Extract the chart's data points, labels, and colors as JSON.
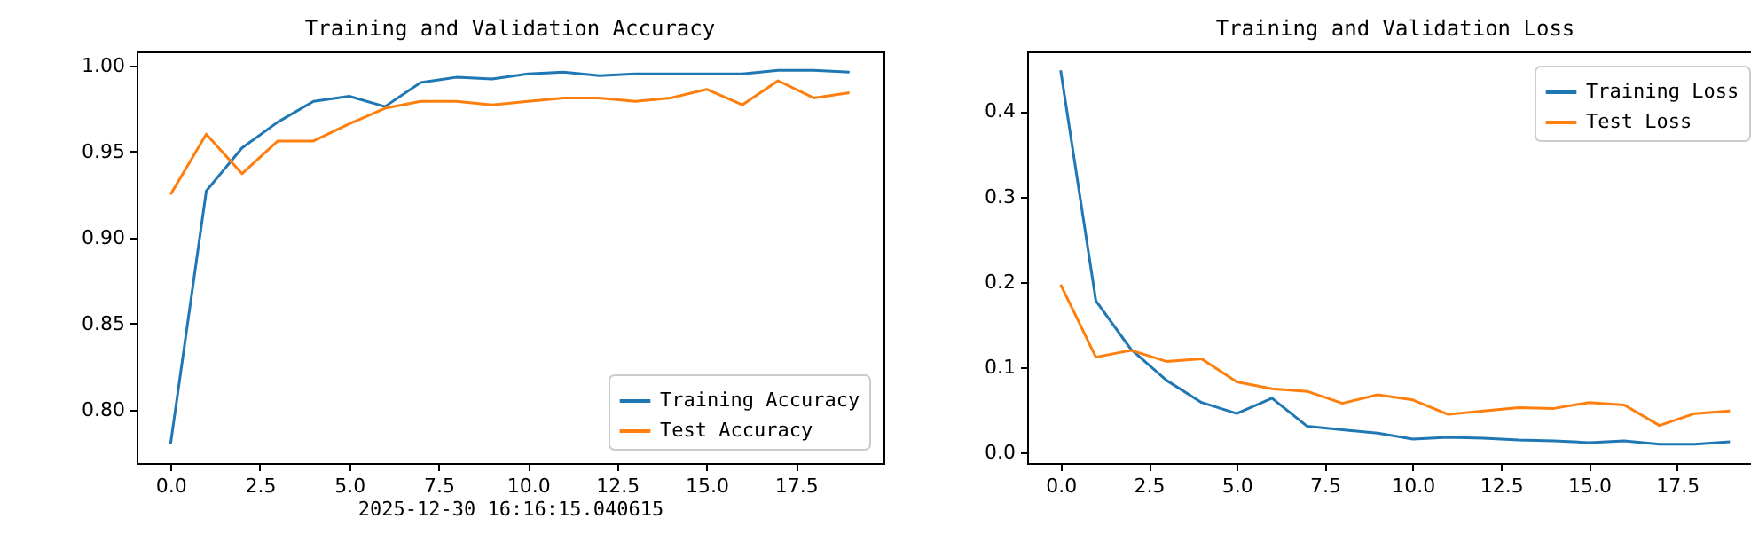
{
  "chart_data": [
    {
      "type": "line",
      "title": "Training and Validation Accuracy",
      "xlabel": "2025-12-30 16:16:15.040615",
      "x": [
        0,
        1,
        2,
        3,
        4,
        5,
        6,
        7,
        8,
        9,
        10,
        11,
        12,
        13,
        14,
        15,
        16,
        17,
        18,
        19
      ],
      "series": [
        {
          "name": "Training Accuracy",
          "color": "#1f77b4",
          "values": [
            0.78,
            0.927,
            0.952,
            0.967,
            0.979,
            0.982,
            0.976,
            0.99,
            0.993,
            0.992,
            0.995,
            0.996,
            0.994,
            0.995,
            0.995,
            0.995,
            0.995,
            0.997,
            0.997,
            0.996
          ]
        },
        {
          "name": "Test Accuracy",
          "color": "#ff7f0e",
          "values": [
            0.925,
            0.96,
            0.937,
            0.956,
            0.956,
            0.966,
            0.975,
            0.979,
            0.979,
            0.977,
            0.979,
            0.981,
            0.981,
            0.979,
            0.981,
            0.986,
            0.977,
            0.991,
            0.981,
            0.984
          ]
        }
      ],
      "xlim": [
        -0.95,
        19.95
      ],
      "ylim": [
        0.769,
        1.008
      ],
      "xticks": [
        {
          "value": 0,
          "label": "0.0"
        },
        2.5,
        {
          "value": 5,
          "label": "5.0"
        },
        7.5,
        {
          "value": 10,
          "label": "10.0"
        },
        12.5,
        {
          "value": 15,
          "label": "15.0"
        },
        17.5
      ],
      "yticks": [
        {
          "value": 0.8,
          "label": "0.80"
        },
        {
          "value": 0.85,
          "label": "0.85"
        },
        {
          "value": 0.9,
          "label": "0.90"
        },
        {
          "value": 0.95,
          "label": "0.95"
        },
        {
          "value": 1,
          "label": "1.00"
        }
      ],
      "legend": "bottom right",
      "grid": false,
      "line_style": "solid",
      "marker": "none"
    },
    {
      "type": "line",
      "title": "Training and Validation Loss",
      "x": [
        0,
        1,
        2,
        3,
        4,
        5,
        6,
        7,
        8,
        9,
        10,
        11,
        12,
        13,
        14,
        15,
        16,
        17,
        18,
        19
      ],
      "series": [
        {
          "name": "Training Loss",
          "color": "#1f77b4",
          "values": [
            0.448,
            0.178,
            0.121,
            0.085,
            0.059,
            0.046,
            0.064,
            0.031,
            0.027,
            0.023,
            0.016,
            0.018,
            0.017,
            0.015,
            0.014,
            0.012,
            0.014,
            0.01,
            0.01,
            0.013
          ]
        },
        {
          "name": "Test Loss",
          "color": "#ff7f0e",
          "values": [
            0.197,
            0.112,
            0.12,
            0.107,
            0.11,
            0.083,
            0.075,
            0.072,
            0.058,
            0.068,
            0.062,
            0.045,
            0.049,
            0.053,
            0.052,
            0.059,
            0.056,
            0.032,
            0.046,
            0.049
          ]
        }
      ],
      "xlim": [
        -0.95,
        19.95
      ],
      "ylim": [
        -0.012,
        0.47
      ],
      "xticks": [
        {
          "value": 0,
          "label": "0.0"
        },
        2.5,
        {
          "value": 5,
          "label": "5.0"
        },
        7.5,
        {
          "value": 10,
          "label": "10.0"
        },
        12.5,
        {
          "value": 15,
          "label": "15.0"
        },
        17.5
      ],
      "yticks": [
        {
          "value": 0,
          "label": "0.0"
        },
        {
          "value": 0.1,
          "label": "0.1"
        },
        {
          "value": 0.2,
          "label": "0.2"
        },
        {
          "value": 0.3,
          "label": "0.3"
        },
        {
          "value": 0.4,
          "label": "0.4"
        }
      ],
      "legend": "top right",
      "grid": false,
      "line_style": "solid",
      "marker": "none"
    }
  ]
}
